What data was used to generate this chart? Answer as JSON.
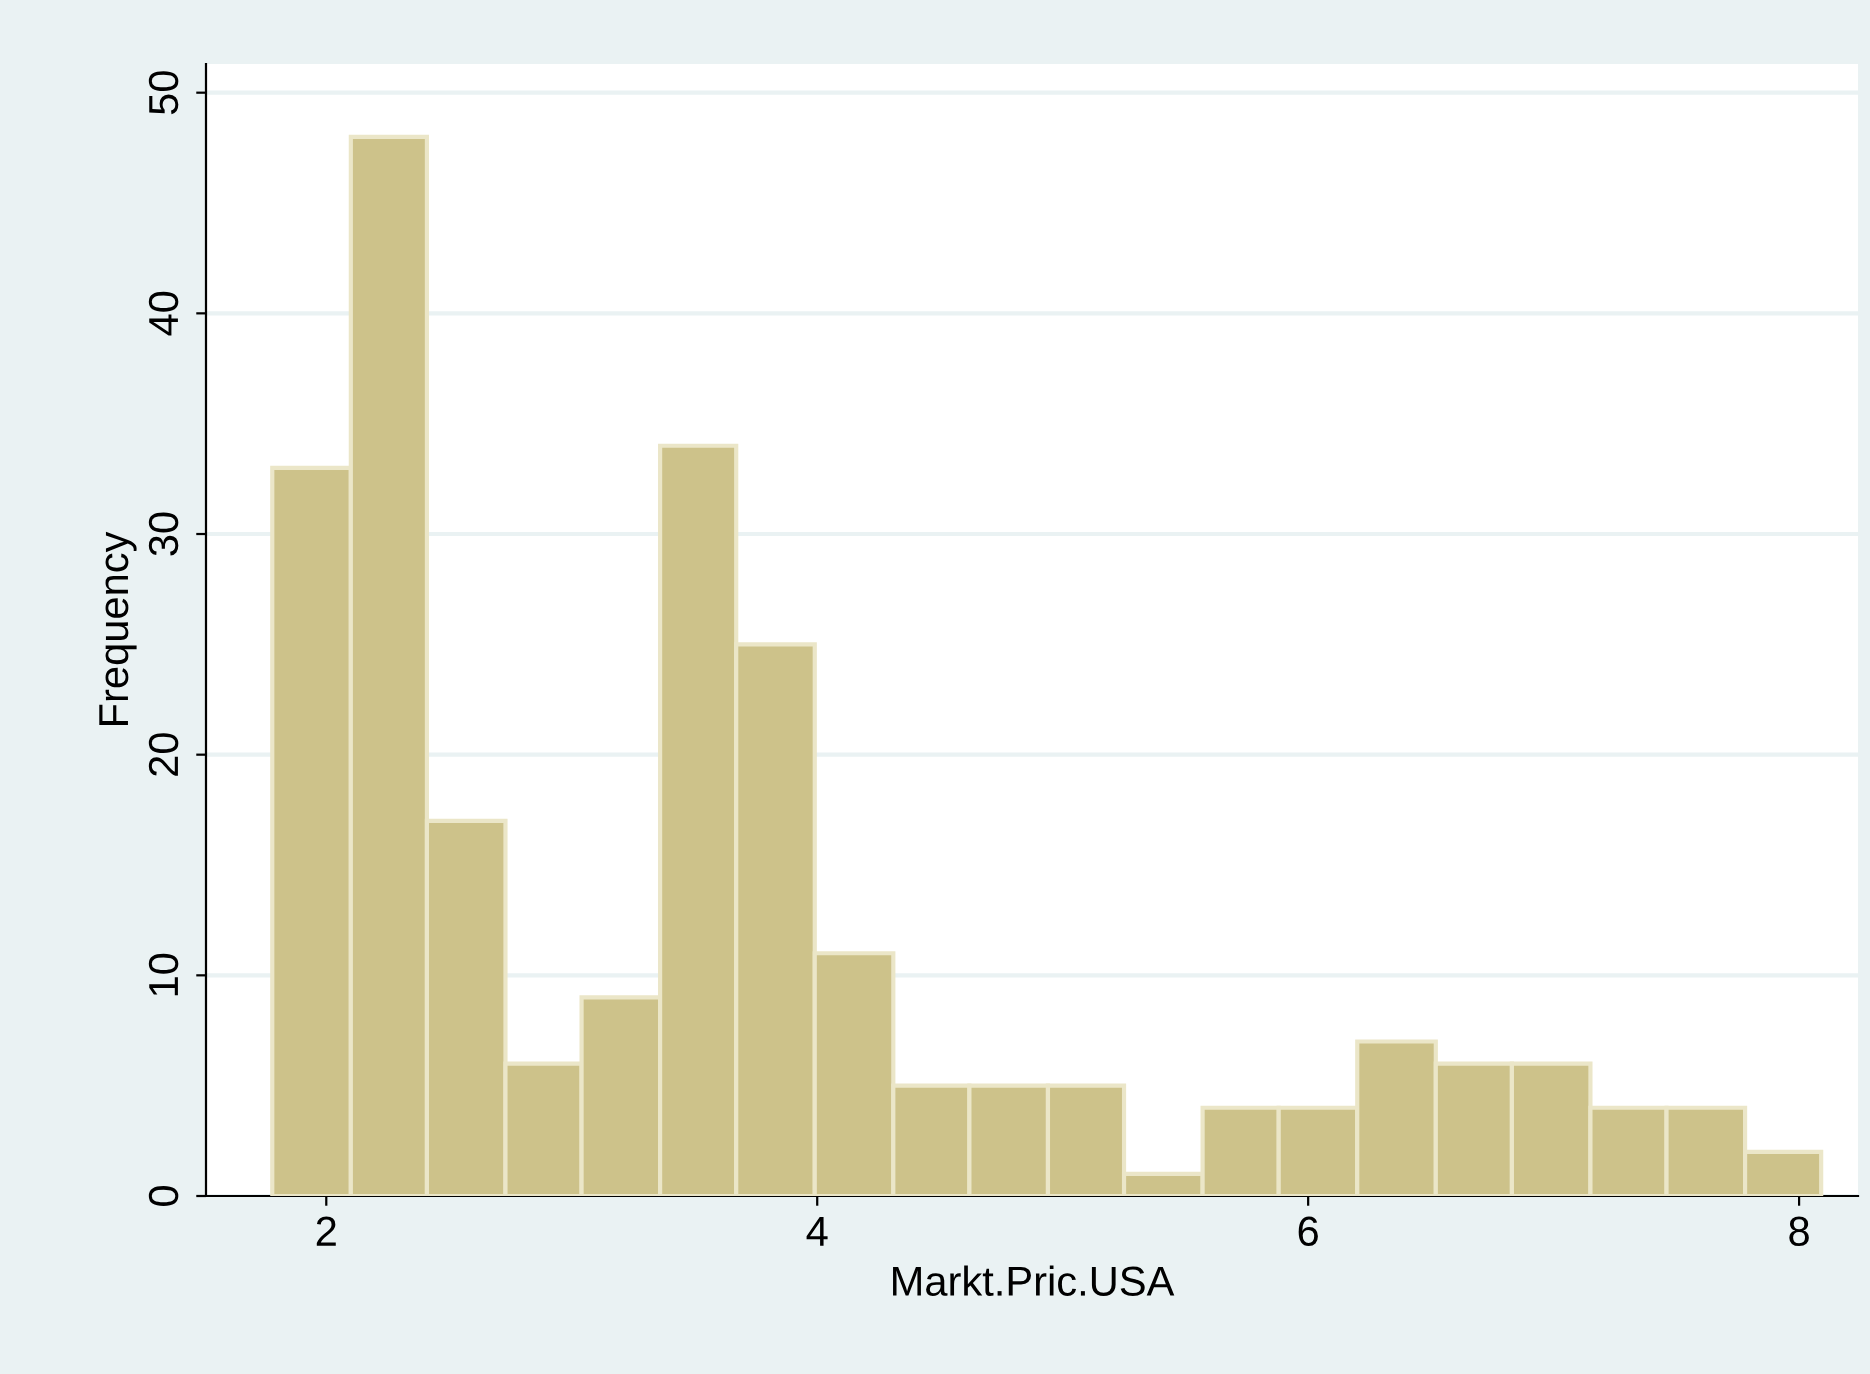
{
  "chart_data": {
    "type": "histogram",
    "xlabel": "Markt.Pric.USA",
    "ylabel": "Frequency",
    "bins": [
      1.78,
      2.1,
      2.41,
      2.73,
      3.04,
      3.36,
      3.67,
      3.99,
      4.31,
      4.62,
      4.94,
      5.25,
      5.57,
      5.88,
      6.2,
      6.52,
      6.83,
      7.15,
      7.46,
      7.78,
      8.09
    ],
    "values": [
      33,
      48,
      17,
      6,
      9,
      34,
      25,
      11,
      5,
      5,
      5,
      1,
      4,
      4,
      7,
      6,
      6,
      4,
      4,
      2
    ],
    "color": "#cdc28a",
    "xlim": [
      1.51,
      8.24
    ],
    "xticks": [
      2,
      4,
      6,
      8
    ],
    "ylim": [
      0,
      51.3
    ],
    "yticks": [
      0,
      10,
      20,
      30,
      40,
      50
    ],
    "grid": "y"
  }
}
